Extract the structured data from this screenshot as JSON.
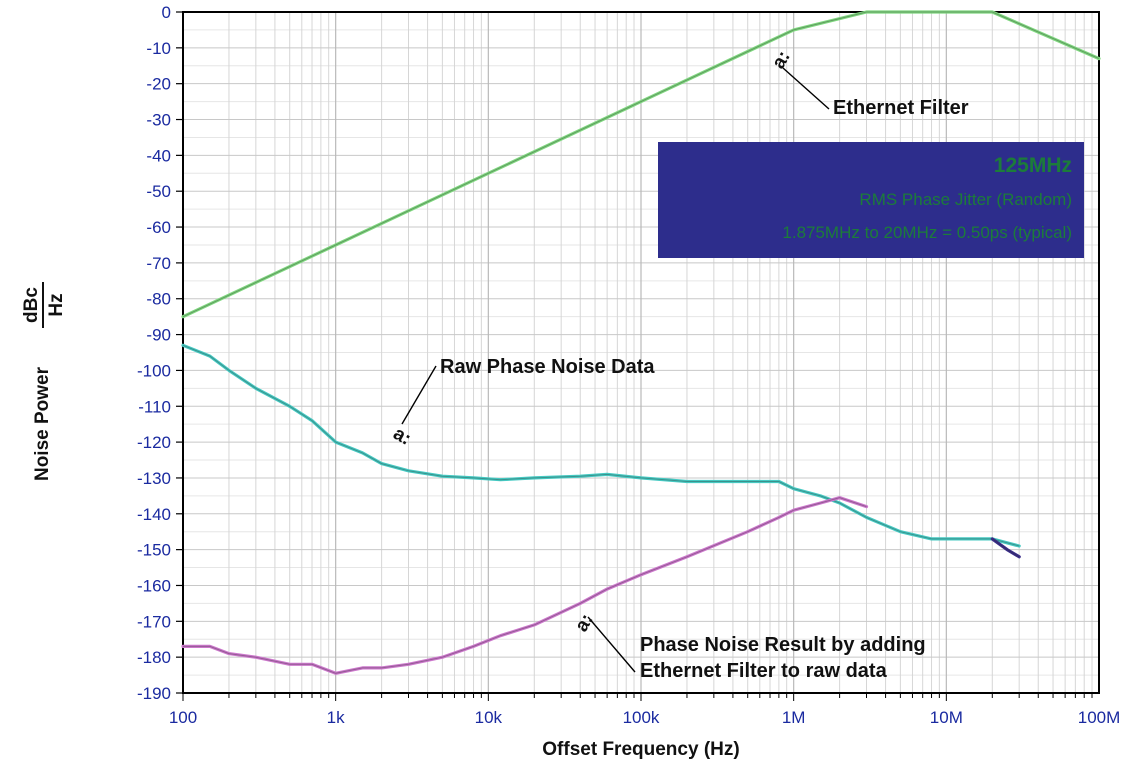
{
  "chart_data": {
    "type": "line",
    "title": "",
    "xlabel": "Offset Frequency (Hz)",
    "ylabel_prefix": "Noise Power",
    "ylabel_unit_num": "dBc",
    "ylabel_unit_den": "Hz",
    "xscale": "log",
    "xlim": [
      100,
      100000000
    ],
    "ylim": [
      -190,
      0
    ],
    "grid": true,
    "xtick_labels": [
      {
        "value": 100,
        "label": "100"
      },
      {
        "value": 1000,
        "label": "1k"
      },
      {
        "value": 10000,
        "label": "10k"
      },
      {
        "value": 100000,
        "label": "100k"
      },
      {
        "value": 1000000,
        "label": "1M"
      },
      {
        "value": 10000000,
        "label": "10M"
      },
      {
        "value": 100000000,
        "label": "100M"
      }
    ],
    "ytick_values": [
      0,
      -10,
      -20,
      -30,
      -40,
      -50,
      -60,
      -70,
      -80,
      -90,
      -100,
      -110,
      -120,
      -130,
      -140,
      -150,
      -160,
      -170,
      -180,
      -190
    ],
    "series": [
      {
        "key": "filter",
        "color": "#7fd87f",
        "x": [
          100,
          1000,
          10000,
          100000,
          1000000,
          3000000,
          20000000,
          100000000
        ],
        "y": [
          -85,
          -65,
          -45,
          -25,
          -5,
          0,
          0,
          -13
        ]
      },
      {
        "key": "raw",
        "color": "#45c9c2",
        "x": [
          100,
          150,
          200,
          300,
          500,
          700,
          1000,
          1500,
          2000,
          3000,
          5000,
          8000,
          12000,
          20000,
          40000,
          60000,
          100000,
          200000,
          500000,
          800000,
          1000000,
          1500000,
          2000000,
          3000000,
          5000000,
          8000000,
          12000000,
          20000000,
          30000000
        ],
        "y": [
          -93,
          -96,
          -100,
          -105,
          -110,
          -114,
          -120,
          -123,
          -126,
          -128,
          -129.5,
          -130,
          -130.5,
          -130,
          -129.5,
          -129,
          -130,
          -131,
          -131,
          -131,
          -133,
          -135,
          -137,
          -141,
          -145,
          -147,
          -147,
          -147,
          -149
        ]
      },
      {
        "key": "result",
        "color": "#cc77cc",
        "x": [
          100,
          150,
          200,
          300,
          500,
          700,
          1000,
          1500,
          2000,
          3000,
          5000,
          8000,
          12000,
          20000,
          40000,
          60000,
          100000,
          200000,
          500000,
          800000,
          1000000,
          1500000,
          2000000,
          3000000
        ],
        "y": [
          -177,
          -177,
          -179,
          -180,
          -182,
          -182,
          -184.5,
          -183,
          -183,
          -182,
          -180,
          -177,
          -174,
          -171,
          -165,
          -161,
          -157,
          -152,
          -145,
          -141,
          -139,
          -137,
          -135.5,
          -138
        ]
      },
      {
        "key": "tail",
        "color": "#3a2d8a",
        "x": [
          20000000,
          25000000,
          30000000
        ],
        "y": [
          -147,
          -150,
          -152
        ]
      }
    ],
    "annotations": [
      {
        "key": "ethernet",
        "text": "Ethernet Filter"
      },
      {
        "key": "raw",
        "text": "Raw Phase Noise Data"
      },
      {
        "key": "result_1",
        "text": "Phase Noise Result by adding"
      },
      {
        "key": "result_2",
        "text": "Ethernet Filter to raw data"
      }
    ],
    "info_box": {
      "background": "#2d2d8c",
      "text_color": "#1c7c3a",
      "title": "125MHz",
      "line1": "RMS Phase Jitter (Random)",
      "line2": "1.875MHz to 20MHz = 0.50ps (typical)"
    }
  }
}
